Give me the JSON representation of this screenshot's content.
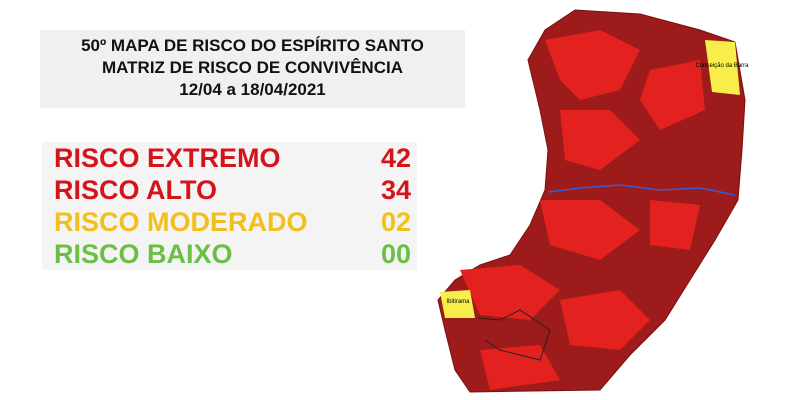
{
  "header": {
    "lines": [
      "50º MAPA DE RISCO DO ESPÍRITO SANTO",
      "MATRIZ DE RISCO DE CONVIVÊNCIA",
      "12/04 a 18/04/2021"
    ]
  },
  "risk_levels": [
    {
      "name": "RISCO EXTREMO",
      "count": "42",
      "color": "#d3151b"
    },
    {
      "name": "RISCO ALTO",
      "count": "34",
      "color": "#d3151b"
    },
    {
      "name": "RISCO MODERADO",
      "count": "02",
      "color": "#f2c01c"
    },
    {
      "name": "RISCO BAIXO",
      "count": "00",
      "color": "#6cbf45"
    }
  ],
  "map": {
    "labels": [
      "Conceição da Barra",
      "Ibitirama"
    ]
  }
}
